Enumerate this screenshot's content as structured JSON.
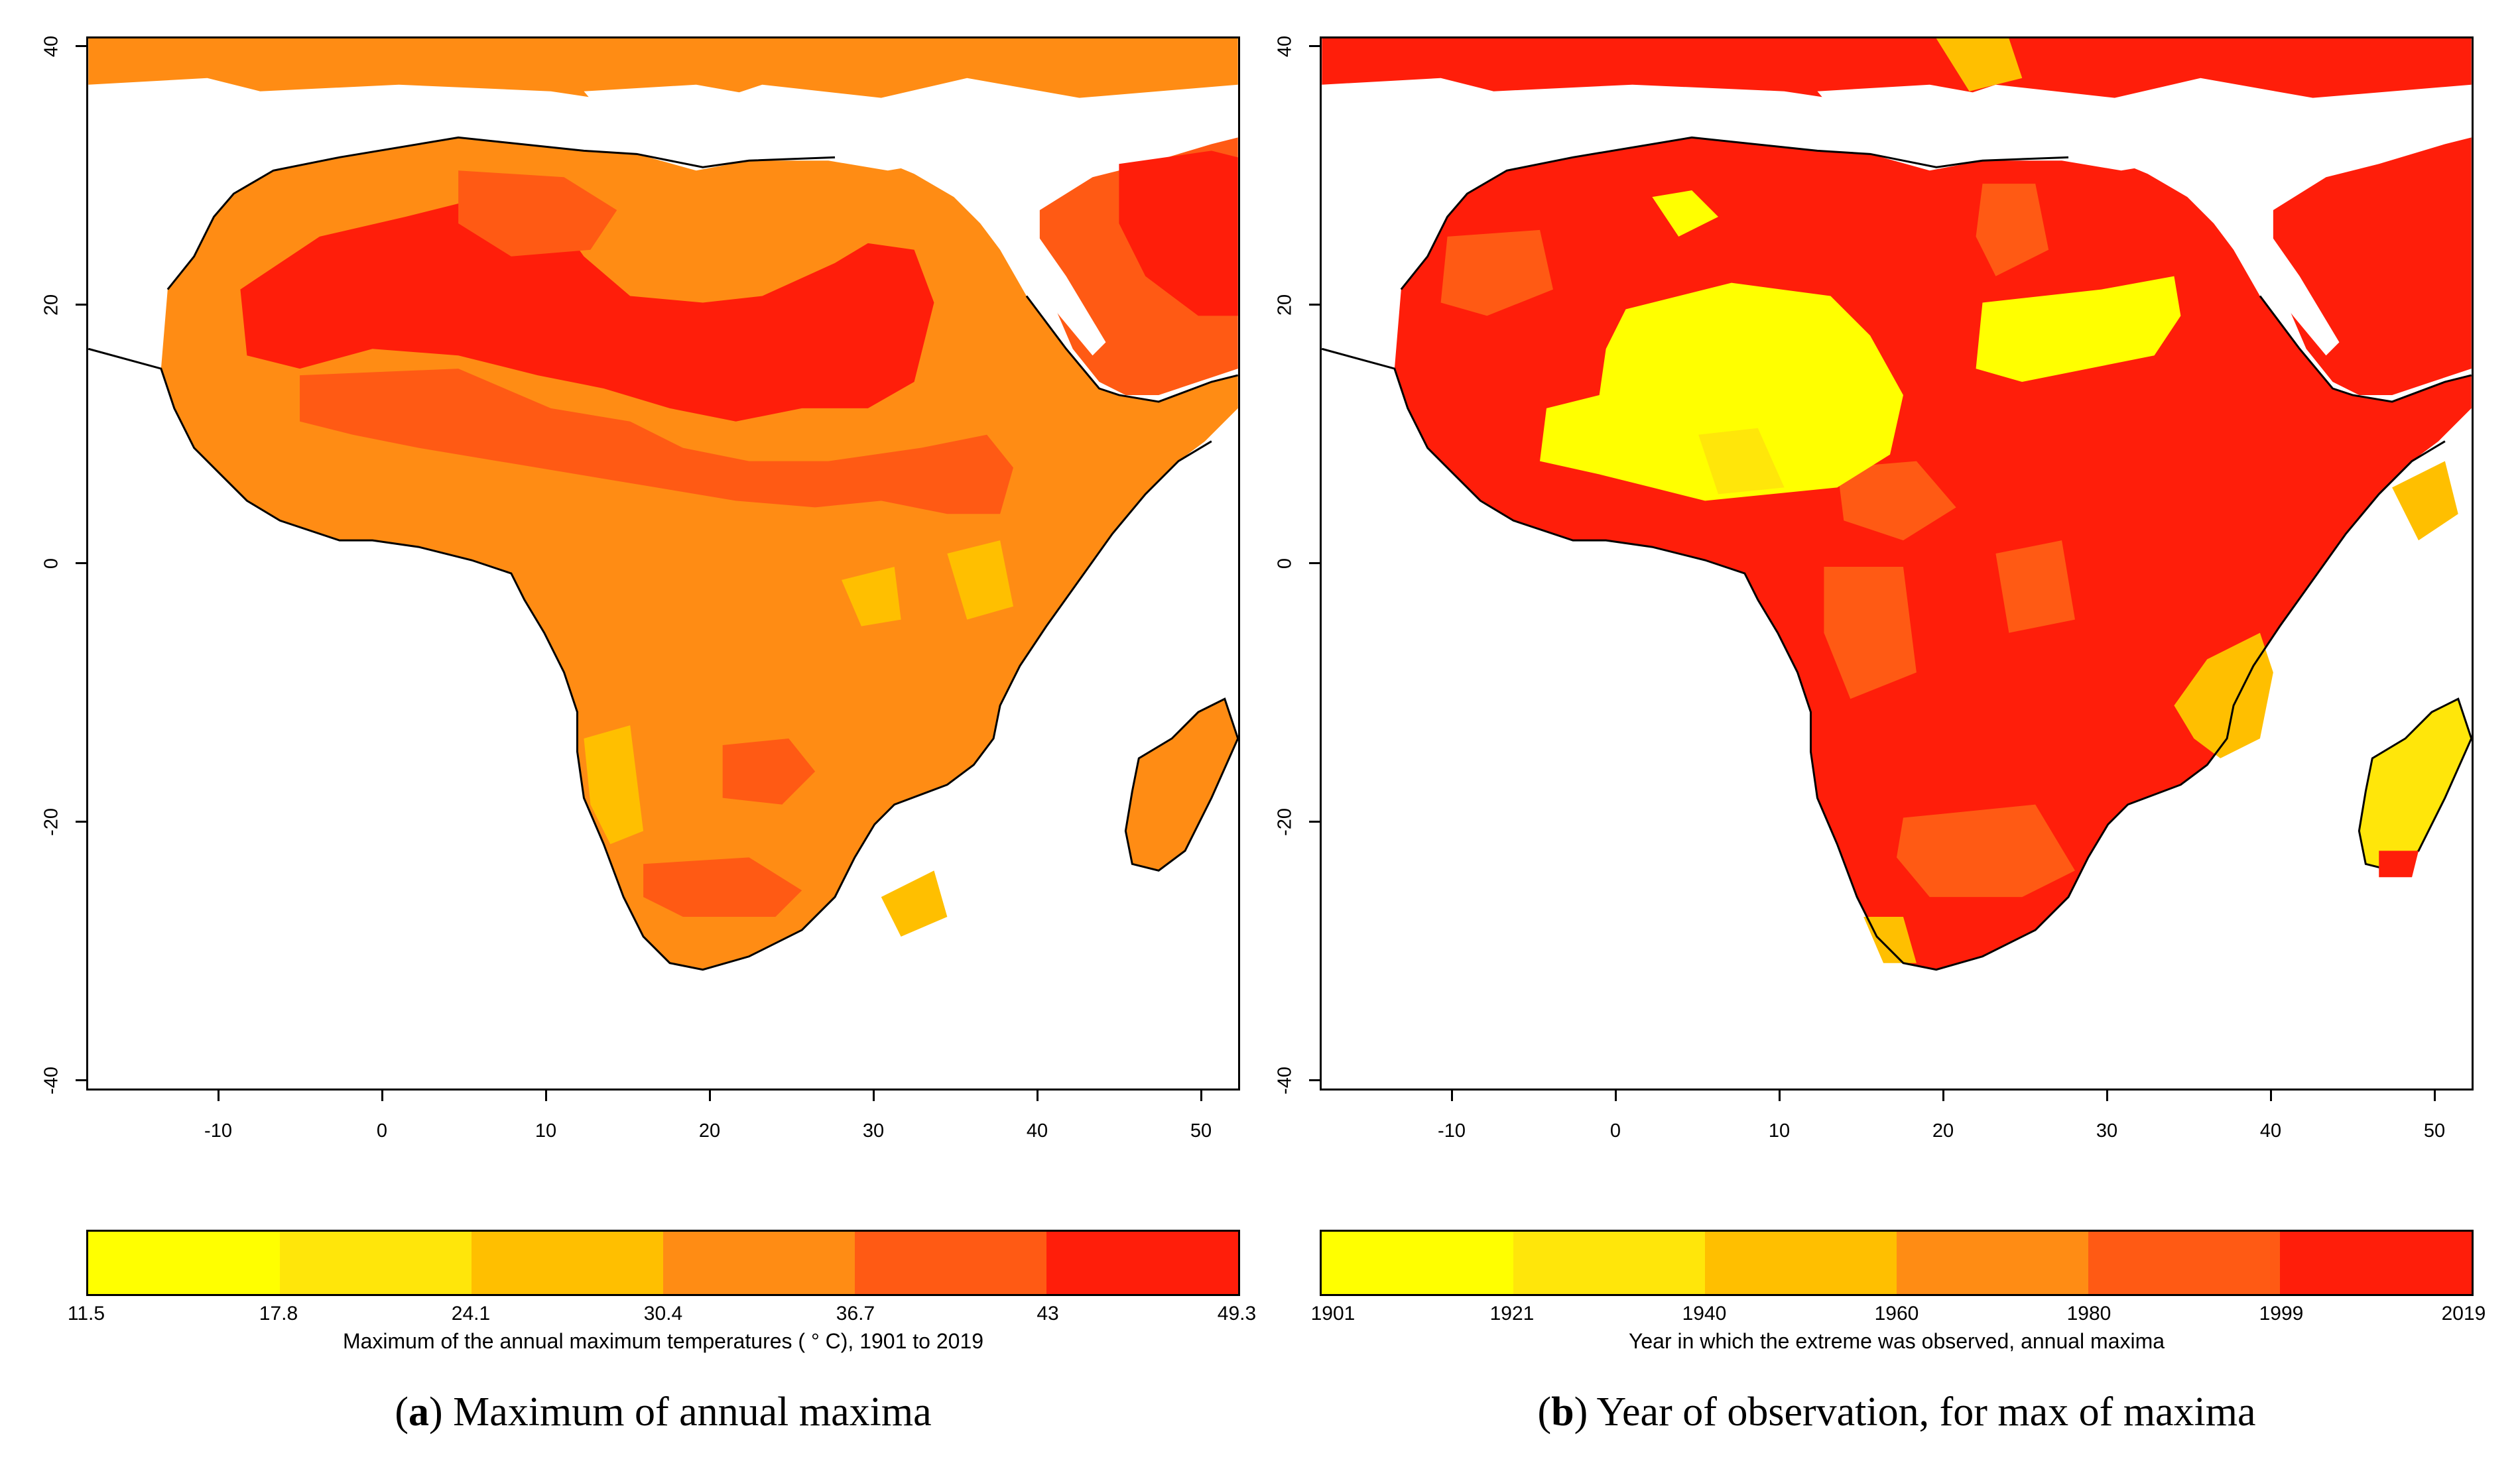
{
  "panels": [
    {
      "id": "a",
      "x_ticks": [
        "-10",
        "0",
        "10",
        "20",
        "30",
        "40",
        "50"
      ],
      "y_ticks": [
        "40",
        "20",
        "0",
        "-20",
        "-40"
      ],
      "legend": {
        "breaks": [
          "11.5",
          "17.8",
          "24.1",
          "30.4",
          "36.7",
          "43",
          "49.3"
        ],
        "colors": [
          "#ffff00",
          "#ffe60a",
          "#ffbf00",
          "#ff8c14",
          "#ff5a14",
          "#ff1e0a"
        ],
        "title": "Maximum of the annual maximum temperatures ( ° C), 1901 to 2019"
      },
      "caption_label": "a",
      "caption_text": "Maximum of annual maxima"
    },
    {
      "id": "b",
      "x_ticks": [
        "-10",
        "0",
        "10",
        "20",
        "30",
        "40",
        "50"
      ],
      "y_ticks": [
        "40",
        "20",
        "0",
        "-20",
        "-40"
      ],
      "legend": {
        "breaks": [
          "1901",
          "1921",
          "1940",
          "1960",
          "1980",
          "1999",
          "2019"
        ],
        "colors": [
          "#ffff00",
          "#ffe60a",
          "#ffbf00",
          "#ff8c14",
          "#ff5a14",
          "#ff1e0a"
        ],
        "title": "Year in which the extreme was observed, annual maxima"
      },
      "caption_label": "b",
      "caption_text": "Year of observation, for max of maxima"
    }
  ]
}
